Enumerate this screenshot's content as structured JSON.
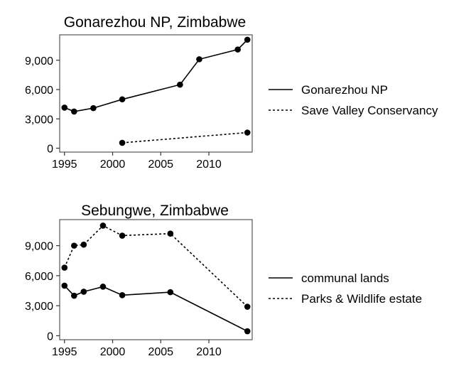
{
  "chart_data": [
    {
      "type": "line",
      "title": "Gonarezhou NP, Zimbabwe",
      "xlabel": "",
      "ylabel": "",
      "xlim": [
        1994.5,
        2014.5
      ],
      "ylim": [
        -400,
        11600
      ],
      "xticks": [
        1995,
        2000,
        2005,
        2010
      ],
      "xtick_labels": [
        "1995",
        "2000",
        "2005",
        "2010"
      ],
      "yticks": [
        0,
        3000,
        6000,
        9000
      ],
      "ytick_labels": [
        "0",
        "3,000",
        "6,000",
        "9,000"
      ],
      "grid": false,
      "legend_position": "right",
      "series": [
        {
          "name": "Gonarezhou NP",
          "line_style": "solid",
          "x": [
            1995,
            1996,
            1998,
            2001,
            2007,
            2009,
            2013,
            2014
          ],
          "values": [
            4150,
            3750,
            4100,
            5000,
            6500,
            9100,
            10100,
            11100
          ]
        },
        {
          "name": "Save Valley Conservancy",
          "line_style": "dashed",
          "x": [
            2001,
            2014
          ],
          "values": [
            550,
            1600
          ]
        }
      ]
    },
    {
      "type": "line",
      "title": "Sebungwe, Zimbabwe",
      "xlabel": "",
      "ylabel": "",
      "xlim": [
        1994.5,
        2014.5
      ],
      "ylim": [
        -400,
        11600
      ],
      "xticks": [
        1995,
        2000,
        2005,
        2010
      ],
      "xtick_labels": [
        "1995",
        "2000",
        "2005",
        "2010"
      ],
      "yticks": [
        0,
        3000,
        6000,
        9000
      ],
      "ytick_labels": [
        "0",
        "3,000",
        "6,000",
        "9,000"
      ],
      "grid": false,
      "legend_position": "right",
      "series": [
        {
          "name": "communal lands",
          "line_style": "solid",
          "x": [
            1995,
            1996,
            1997,
            1999,
            2001,
            2006,
            2014
          ],
          "values": [
            5000,
            4000,
            4400,
            4900,
            4050,
            4350,
            450
          ]
        },
        {
          "name": "Parks & Wildlife estate",
          "line_style": "dashed",
          "x": [
            1995,
            1996,
            1997,
            1999,
            2001,
            2006,
            2014
          ],
          "values": [
            6800,
            9000,
            9100,
            11000,
            10000,
            10200,
            2900
          ]
        }
      ]
    }
  ]
}
